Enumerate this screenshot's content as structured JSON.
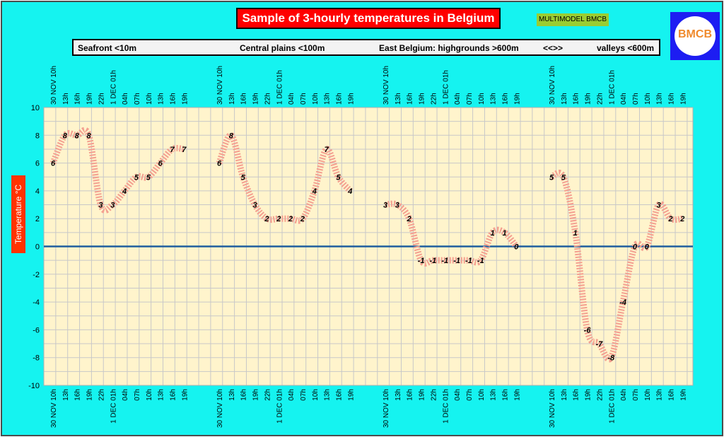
{
  "header": {
    "title": "Sample of 3-hourly temperatures in Belgium",
    "model_badge": "MULTIMODEL BMCB",
    "logo_text": "BMCB"
  },
  "categories": {
    "seafront": "Seafront <10m",
    "central": "Central plains <100m",
    "east": "East Belgium: highgrounds >600m",
    "arrow": "<<>>",
    "valleys": "valleys <600m"
  },
  "colors": {
    "background": "#15f3f0",
    "plot_area": "#fff4cc",
    "grid": "#c8c8c8",
    "zero_line": "#1f5f9f",
    "series": "#f4a090",
    "title_bg": "#ff0000",
    "badge_bg": "#9acd32",
    "logo_bg": "#1d1df2",
    "ylabel_bg": "#ff3300"
  },
  "chart_data": {
    "type": "line",
    "ylabel": "Temperature   °C",
    "ylim": [
      -10,
      10
    ],
    "y_ticks": [
      10,
      8,
      6,
      4,
      2,
      0,
      -2,
      -4,
      -6,
      -8,
      -10
    ],
    "grid": true,
    "legend": "none",
    "series": [
      {
        "name": "Seafront <10m",
        "x": [
          "30 NOV 10h",
          "13h",
          "16h",
          "19h",
          "22h",
          "1 DEC 01h",
          "04h",
          "07h",
          "10h",
          "13h",
          "16h",
          "19h"
        ],
        "values": [
          6,
          8,
          8,
          8,
          3,
          3,
          4,
          5,
          5,
          6,
          7,
          7
        ]
      },
      {
        "name": "Central plains <100m",
        "x": [
          "30 NOV 10h",
          "13h",
          "16h",
          "19h",
          "22h",
          "1 DEC 01h",
          "04h",
          "07h",
          "10h",
          "13h",
          "16h",
          "19h"
        ],
        "values": [
          6,
          8,
          5,
          3,
          2,
          2,
          2,
          2,
          4,
          7,
          5,
          4
        ]
      },
      {
        "name": "East Belgium: highgrounds >600m",
        "x": [
          "30 NOV 10h",
          "13h",
          "16h",
          "19h",
          "22h",
          "1 DEC 01h",
          "04h",
          "07h",
          "10h",
          "13h",
          "16h",
          "19h"
        ],
        "values": [
          3,
          3,
          2,
          -1,
          -1,
          -1,
          -1,
          -1,
          -1,
          1,
          1,
          0
        ]
      },
      {
        "name": "valleys <600m",
        "x": [
          "30 NOV 10h",
          "13h",
          "16h",
          "19h",
          "22h",
          "1 DEC 01h",
          "04h",
          "07h",
          "10h",
          "13h",
          "16h",
          "19h"
        ],
        "values": [
          5,
          5,
          1,
          -6,
          -7,
          -8,
          -4,
          0,
          0,
          3,
          2,
          2
        ]
      }
    ]
  }
}
